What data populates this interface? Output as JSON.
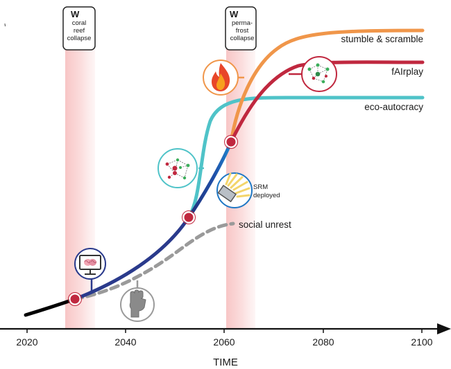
{
  "x_axis": {
    "title": "TIME",
    "ticks": [
      "2020",
      "2040",
      "2060",
      "2080",
      "2100"
    ]
  },
  "tipping_events": [
    {
      "icon": "W",
      "lines": [
        "coral",
        "reef",
        "collapse"
      ]
    },
    {
      "icon": "W",
      "lines": [
        "perma-",
        "frost",
        "collapse"
      ]
    }
  ],
  "scenarios": {
    "stumble": "stumble & scramble",
    "fairplay": "fAIrplay",
    "eco": "eco-autocracy",
    "unrest": "social unrest",
    "srm": [
      "SRM",
      "deployed"
    ]
  },
  "colors": {
    "baseline": "#000000",
    "main_path": "#2a3a8c",
    "mid_path": "#1f77c4",
    "stumble": "#f0964a",
    "fairplay": "#c0283f",
    "eco": "#4fc3c8",
    "unrest": "#9a9a9a",
    "event_band": "#f6b5b5",
    "branch_point": "#c0283f"
  },
  "icons": [
    "brain-monitor-icon",
    "raised-fist-icon",
    "network-icon",
    "fire-icon",
    "srm-solar-panel-icon"
  ]
}
